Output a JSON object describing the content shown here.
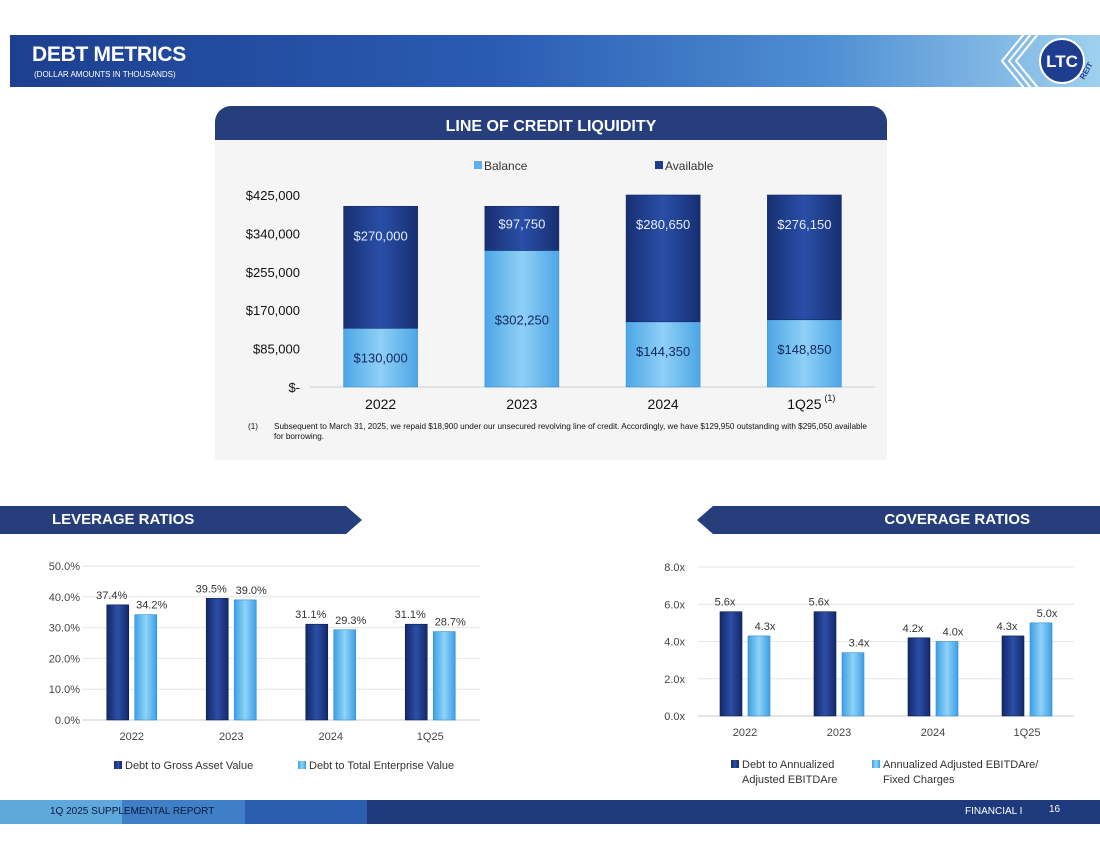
{
  "header": {
    "title": "DEBT METRICS",
    "subtitle": "(DOLLAR AMOUNTS IN THOUSANDS)",
    "logo_text": "LTC",
    "logo_subtext": "REIT"
  },
  "sections": {
    "line_of_credit": "LINE OF CREDIT LIQUIDITY",
    "leverage": "LEVERAGE RATIOS",
    "coverage": "COVERAGE RATIOS"
  },
  "footnote": {
    "marker": "(1)",
    "text": "Subsequent to March 31, 2025, we repaid $18,900 under our unsecured revolving line of credit.  Accordingly, we have $129,950 outstanding with $295,050 available for borrowing."
  },
  "footer": {
    "left": "1Q 2025 SUPPLEMENTAL REPORT",
    "right": "FINANCIAL   I",
    "page": "16"
  },
  "colors": {
    "navy": "#263f7c",
    "dark_blue_bar": "#1f3d8f",
    "light_blue_bar": "#5eb0ea",
    "footer": "#1f3a7c"
  },
  "chart_data": [
    {
      "type": "bar",
      "stacked": true,
      "categories": [
        "2022",
        "2023",
        "2024",
        "1Q25"
      ],
      "category_superscripts": [
        "",
        "",
        "",
        "(1)"
      ],
      "series": [
        {
          "name": "Balance",
          "values": [
            130000,
            302250,
            144350,
            148850
          ],
          "labels": [
            "$130,000",
            "$302,250",
            "$144,350",
            "$148,850"
          ],
          "color": "#5eb0ea"
        },
        {
          "name": "Available",
          "values": [
            270000,
            97750,
            280650,
            276150
          ],
          "labels": [
            "$270,000",
            "$97,750",
            "$280,650",
            "$276,150"
          ],
          "color": "#1f3d8f"
        }
      ],
      "ylim": [
        0,
        425000
      ],
      "yticks": [
        0,
        85000,
        170000,
        255000,
        340000,
        425000
      ],
      "ytick_labels": [
        "$-",
        "$85,000",
        "$170,000",
        "$255,000",
        "$340,000",
        "$425,000"
      ],
      "legend": "top-center",
      "grid": false
    },
    {
      "type": "bar",
      "categories": [
        "2022",
        "2023",
        "2024",
        "1Q25"
      ],
      "series": [
        {
          "name": "Debt to Gross Asset Value",
          "values": [
            37.4,
            39.5,
            31.1,
            31.1
          ],
          "labels": [
            "37.4%",
            "39.5%",
            "31.1%",
            "31.1%"
          ],
          "color": "#1f3d8f"
        },
        {
          "name": "Debt to Total Enterprise Value",
          "values": [
            34.2,
            39.0,
            29.3,
            28.7
          ],
          "labels": [
            "34.2%",
            "39.0%",
            "29.3%",
            "28.7%"
          ],
          "color": "#5eb0ea"
        }
      ],
      "ylim": [
        0,
        50
      ],
      "yticks": [
        0,
        10,
        20,
        30,
        40,
        50
      ],
      "ytick_labels": [
        "0.0%",
        "10.0%",
        "20.0%",
        "30.0%",
        "40.0%",
        "50.0%"
      ],
      "legend": "bottom",
      "grid": true
    },
    {
      "type": "bar",
      "categories": [
        "2022",
        "2023",
        "2024",
        "1Q25"
      ],
      "series": [
        {
          "name": "Debt to Annualized Adjusted EBITDAre",
          "legend_lines": [
            "Debt to Annualized",
            "Adjusted EBITDAre"
          ],
          "values": [
            5.6,
            5.6,
            4.2,
            4.3
          ],
          "labels": [
            "5.6x",
            "5.6x",
            "4.2x",
            "4.3x"
          ],
          "color": "#1f3d8f"
        },
        {
          "name": "Annualized Adjusted EBITDAre/ Fixed Charges",
          "legend_lines": [
            "Annualized Adjusted EBITDAre/",
            "Fixed Charges"
          ],
          "values": [
            4.3,
            3.4,
            4.0,
            5.0
          ],
          "labels": [
            "4.3x",
            "3.4x",
            "4.0x",
            "5.0x"
          ],
          "color": "#5eb0ea"
        }
      ],
      "ylim": [
        0,
        8
      ],
      "yticks": [
        0,
        2,
        4,
        6,
        8
      ],
      "ytick_labels": [
        "0.0x",
        "2.0x",
        "4.0x",
        "6.0x",
        "8.0x"
      ],
      "legend": "bottom",
      "grid": true
    }
  ]
}
